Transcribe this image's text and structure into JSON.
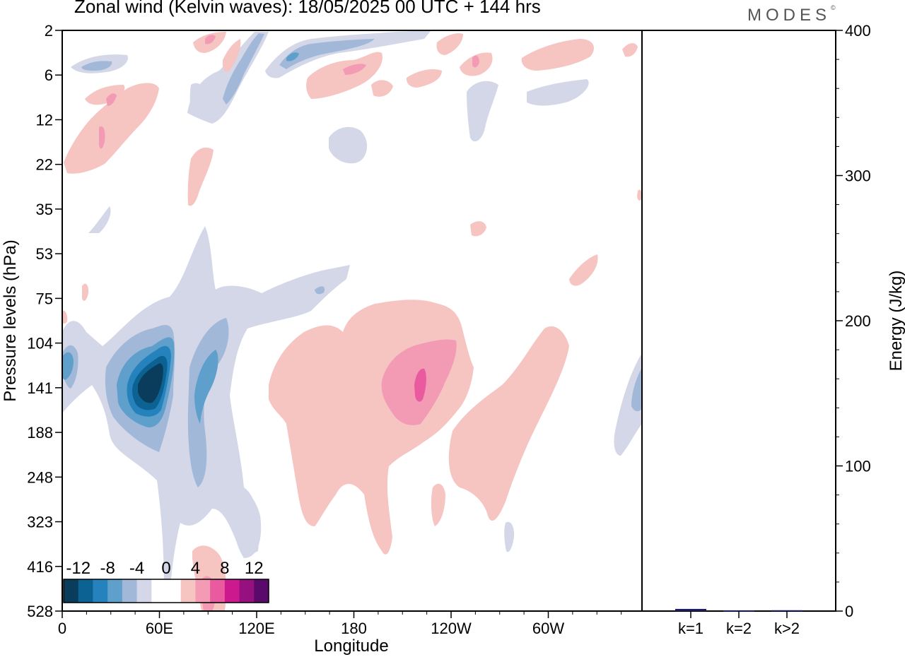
{
  "title": "Zonal wind (Kelvin waves):  18/05/2025  00 UTC  + 144 hrs",
  "brand": "MODES",
  "brand_mark": "©",
  "colors": {
    "neg": [
      "#0a3d5c",
      "#0b6293",
      "#2582bd",
      "#5e9fcb",
      "#a1b8d8",
      "#d3d7e8"
    ],
    "zero": "#ffffff",
    "pos": [
      "#f6c5c2",
      "#f39bb5",
      "#ea5a9e",
      "#cc1a8e",
      "#96107f",
      "#5a0a6b"
    ],
    "bar": "#1a1a66"
  },
  "chart_data": [
    {
      "type": "heatmap",
      "title": "Zonal wind (Kelvin waves):  18/05/2025  00 UTC  + 144 hrs",
      "xlabel": "Longitude",
      "ylabel": "Pressure levels (hPa)",
      "x_ticks": [
        "0",
        "60E",
        "120E",
        "180",
        "120W",
        "60W"
      ],
      "y_ticks": [
        "2",
        "6",
        "12",
        "22",
        "35",
        "53",
        "75",
        "104",
        "141",
        "188",
        "248",
        "323",
        "416",
        "528"
      ],
      "colorbar_labels": [
        "-12",
        "-8",
        "-4",
        "0",
        "4",
        "8",
        "12"
      ],
      "levels": [
        -14,
        -12,
        -10,
        -8,
        -6,
        -4,
        -2,
        2,
        4,
        6,
        8,
        10,
        12,
        14
      ],
      "features": [
        {
          "sign": "negative",
          "lon": 50,
          "p": 141,
          "peak": -12
        },
        {
          "sign": "negative",
          "lon": 80,
          "p": 160,
          "peak": -6
        },
        {
          "sign": "negative",
          "lon": 3,
          "p": 120,
          "peak": -6
        },
        {
          "sign": "negative",
          "lon": 355,
          "p": 141,
          "peak": -6
        },
        {
          "sign": "negative",
          "lon": 140,
          "p": 3,
          "peak": -6
        },
        {
          "sign": "positive",
          "lon": 225,
          "p": 141,
          "peak": 6
        },
        {
          "sign": "positive",
          "lon": 205,
          "p": 180,
          "peak": 4
        },
        {
          "sign": "positive",
          "lon": 150,
          "p": 200,
          "peak": 4
        },
        {
          "sign": "positive",
          "lon": 285,
          "p": 170,
          "peak": 4
        },
        {
          "sign": "positive",
          "lon": 25,
          "p": 12,
          "peak": 4
        }
      ]
    },
    {
      "type": "bar",
      "ylabel": "Energy (J/kg)",
      "categories": [
        "k=1",
        "k=2",
        "k>2"
      ],
      "values": [
        1.5,
        0.3,
        0.6
      ],
      "ylim": [
        0,
        400
      ],
      "y_ticks": [
        "0",
        "100",
        "200",
        "300",
        "400"
      ]
    }
  ]
}
